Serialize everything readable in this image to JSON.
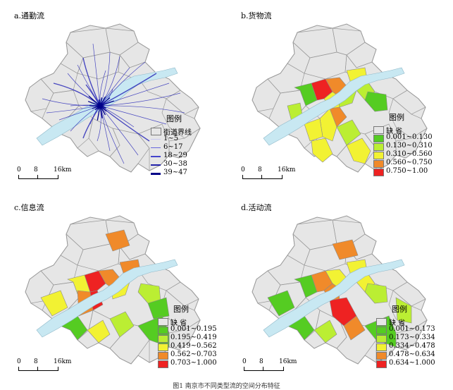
{
  "figure": {
    "caption": "图1 南京市不同类型流的空间分布特征"
  },
  "panels": [
    {
      "id": "a",
      "title": "a.通勤流",
      "legend_title": "图例",
      "legend_items": [
        {
          "label": "街道界线",
          "kind": "fill",
          "color": "#e6e6e6"
        },
        {
          "label": "1~5",
          "kind": "line",
          "color": "#c9c9f2",
          "width": 1
        },
        {
          "label": "6~17",
          "kind": "line",
          "color": "#6666dd",
          "width": 1.5
        },
        {
          "label": "18~29",
          "kind": "line",
          "color": "#4444cc",
          "width": 2
        },
        {
          "label": "30~38",
          "kind": "line",
          "color": "#2222aa",
          "width": 2.5
        },
        {
          "label": "39~47",
          "kind": "line",
          "color": "#000088",
          "width": 3
        }
      ],
      "scale": [
        "0",
        "8",
        "16km"
      ]
    },
    {
      "id": "b",
      "title": "b.货物流",
      "legend_title": "图例",
      "legend_items": [
        {
          "label": "缺    省",
          "color": "#e6e6e6"
        },
        {
          "label": "0.001~0.130",
          "color": "#55cc22"
        },
        {
          "label": "0.130~0.310",
          "color": "#bbee33"
        },
        {
          "label": "0.310~0.560",
          "color": "#f2f233"
        },
        {
          "label": "0.560~0.750",
          "color": "#f08a2a"
        },
        {
          "label": "0.750~1.00",
          "color": "#ee2222"
        }
      ],
      "scale": [
        "0",
        "8",
        "16km"
      ]
    },
    {
      "id": "c",
      "title": "c.信息流",
      "legend_title": "图例",
      "legend_items": [
        {
          "label": "缺    省",
          "color": "#e6e6e6"
        },
        {
          "label": "0.001~0.195",
          "color": "#55cc22"
        },
        {
          "label": "0.195~0.419",
          "color": "#bbee33"
        },
        {
          "label": "0.419~0.562",
          "color": "#f2f233"
        },
        {
          "label": "0.562~0.703",
          "color": "#f08a2a"
        },
        {
          "label": "0.703~1.000",
          "color": "#ee2222"
        }
      ],
      "scale": [
        "0",
        "8",
        "16km"
      ]
    },
    {
      "id": "d",
      "title": "d.活动流",
      "legend_title": "图例",
      "legend_items": [
        {
          "label": "缺    省",
          "color": "#e6e6e6"
        },
        {
          "label": "0.001~0.173",
          "color": "#55cc22"
        },
        {
          "label": "0.173~0.334",
          "color": "#bbee33"
        },
        {
          "label": "0.334~0.478",
          "color": "#f2f233"
        },
        {
          "label": "0.478~0.634",
          "color": "#f08a2a"
        },
        {
          "label": "0.634~1.000",
          "color": "#ee2222"
        }
      ],
      "scale": [
        "0",
        "8",
        "16km"
      ]
    }
  ],
  "colors": {
    "base_fill": "#e6e6e6",
    "boundary": "#999999",
    "river": "#c8e8f2",
    "commute_line": "#2b2bb8"
  }
}
